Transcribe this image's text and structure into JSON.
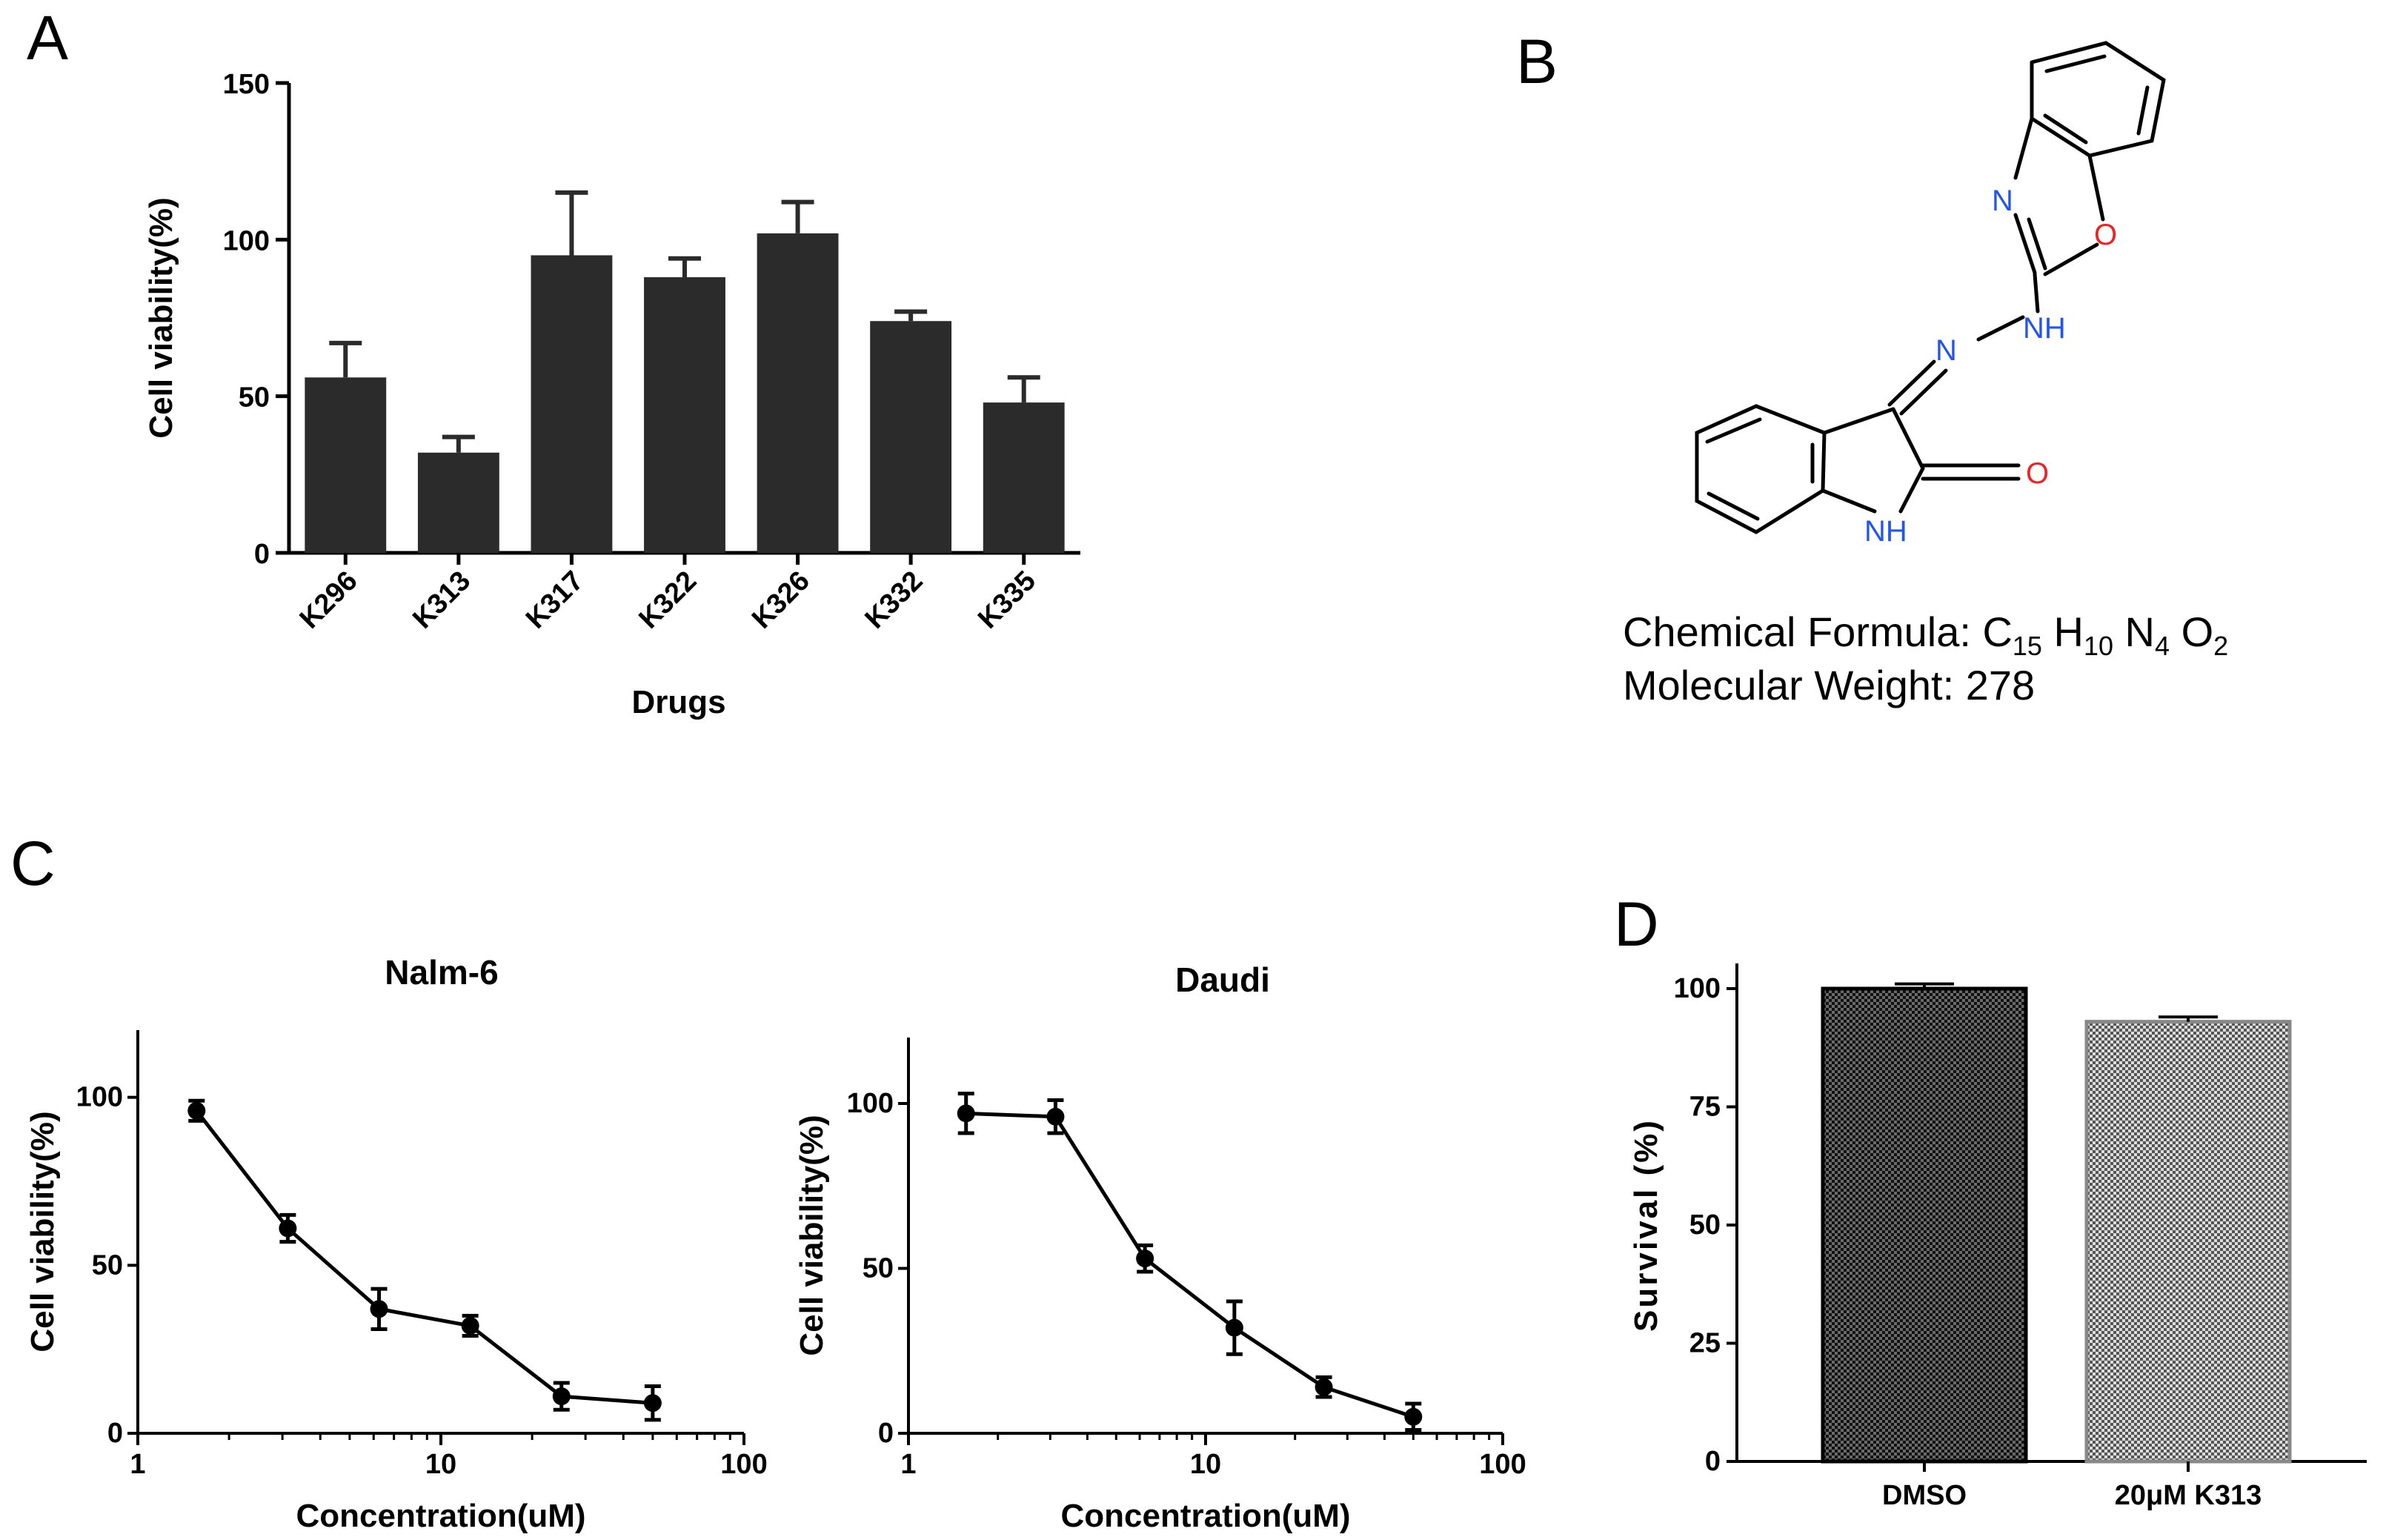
{
  "panel_labels": [
    "A",
    "B",
    "C",
    "D"
  ],
  "colors": {
    "bar": "#2b2b2b",
    "axis": "#000000",
    "nitrogen": "#2255ee",
    "oxygen": "#ee2222"
  },
  "chart_data": [
    {
      "id": "A",
      "type": "bar",
      "categories": [
        "K296",
        "K313",
        "K317",
        "K322",
        "K326",
        "K332",
        "K335"
      ],
      "values": [
        56,
        32,
        95,
        88,
        102,
        74,
        48
      ],
      "errors": [
        11,
        5,
        20,
        6,
        10,
        3,
        8
      ],
      "xlabel": "Drugs",
      "ylabel": "Cell viability(%)",
      "ylim": [
        0,
        150
      ],
      "yticks": [
        0,
        50,
        100,
        150
      ]
    },
    {
      "id": "C1",
      "type": "line",
      "title": "Nalm-6",
      "xscale": "log",
      "x": [
        1.5625,
        3.125,
        6.25,
        12.5,
        25,
        50
      ],
      "y": [
        96,
        61,
        37,
        32,
        11,
        9
      ],
      "errors": [
        3,
        4,
        6,
        3,
        4,
        5
      ],
      "xlabel": "Concentration(uM)",
      "ylabel": "Cell viability(%)",
      "xlim": [
        1,
        100
      ],
      "ylim": [
        0,
        120
      ],
      "xticks": [
        "1",
        "10",
        "100"
      ],
      "yticks": [
        0,
        50,
        100
      ]
    },
    {
      "id": "C2",
      "type": "line",
      "title": "Daudi",
      "xscale": "log",
      "x": [
        1.5625,
        3.125,
        6.25,
        12.5,
        25,
        50
      ],
      "y": [
        97,
        96,
        53,
        32,
        14,
        5
      ],
      "errors": [
        6,
        5,
        4,
        8,
        3,
        4
      ],
      "xlabel": "Concentration(uM)",
      "ylabel": "Cell viability(%)",
      "xlim": [
        1,
        100
      ],
      "ylim": [
        0,
        120
      ],
      "xticks": [
        "1",
        "10",
        "100"
      ],
      "yticks": [
        0,
        50,
        100
      ]
    },
    {
      "id": "D",
      "type": "bar",
      "categories": [
        "DMSO",
        "20μM K313"
      ],
      "values": [
        100,
        93
      ],
      "errors": [
        1,
        1
      ],
      "xlabel": "",
      "ylabel": "Survival (%)",
      "ylim": [
        0,
        100
      ],
      "yticks": [
        0,
        25,
        50,
        75,
        100
      ]
    }
  ],
  "structure": {
    "atoms": {
      "n_ring": "N",
      "o_ring": "O",
      "nh_hydrazone": "NH",
      "n_hydrazone": "N",
      "o_carbonyl": "O",
      "nh_ring": "NH"
    },
    "formula_label": "Chemical  Formula:  C",
    "formula_c_sub": "15",
    "formula_h": " H",
    "formula_h_sub": "10",
    "formula_n": " N",
    "formula_n_sub": "4",
    "formula_o": " O",
    "formula_o_sub": "2",
    "weight_text": "Molecular  Weight: 278"
  }
}
